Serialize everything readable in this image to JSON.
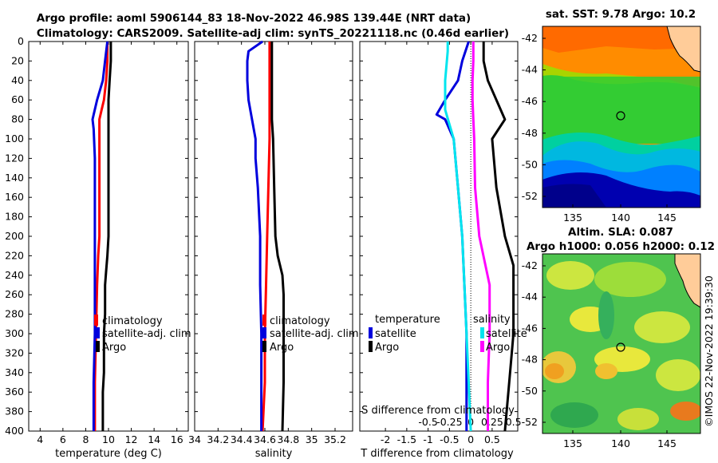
{
  "header": {
    "line1": "Argo profile: aoml 5906144_83 18-Nov-2022 46.98S 139.44E (NRT data)",
    "line2": "Climatology: CARS2009. Satellite-adj clim: synTS_20221118.nc (0.46d earlier)"
  },
  "chart_data": [
    {
      "type": "line",
      "id": "temperature",
      "xlabel": "temperature (deg C)",
      "xlim": [
        3,
        17
      ],
      "xticks": [
        "4",
        "6",
        "8",
        "10",
        "12",
        "14",
        "16"
      ],
      "ylim": [
        400,
        0
      ],
      "yticks": [
        "0",
        "20",
        "40",
        "60",
        "80",
        "100",
        "120",
        "140",
        "160",
        "180",
        "200",
        "220",
        "240",
        "260",
        "280",
        "300",
        "320",
        "340",
        "360",
        "380",
        "400"
      ],
      "legend": [
        "climatology",
        "satellite-adj. clim",
        "Argo"
      ],
      "series": [
        {
          "name": "climatology",
          "color": "#ff0000",
          "depth": [
            0,
            20,
            40,
            60,
            70,
            80,
            100,
            150,
            200,
            220,
            250,
            300,
            350,
            400
          ],
          "values": [
            9.9,
            9.9,
            9.8,
            9.6,
            9.4,
            9.2,
            9.2,
            9.2,
            9.2,
            9.1,
            9.0,
            8.9,
            8.8,
            8.8
          ]
        },
        {
          "name": "satellite-adj. clim",
          "color": "#0000dd",
          "depth": [
            0,
            20,
            40,
            60,
            75,
            80,
            90,
            120,
            200,
            250,
            300,
            350,
            400
          ],
          "values": [
            9.9,
            9.7,
            9.5,
            9.0,
            8.7,
            8.6,
            8.7,
            8.8,
            8.8,
            8.8,
            8.8,
            8.7,
            8.7
          ]
        },
        {
          "name": "Argo",
          "color": "#000000",
          "depth": [
            0,
            20,
            40,
            60,
            80,
            100,
            150,
            200,
            220,
            235,
            250,
            280,
            300,
            340,
            360,
            380,
            400
          ],
          "values": [
            10.2,
            10.2,
            10.1,
            10.0,
            10.0,
            10.0,
            10.0,
            10.0,
            9.9,
            9.8,
            9.7,
            9.7,
            9.6,
            9.6,
            9.5,
            9.5,
            9.5
          ]
        }
      ]
    },
    {
      "type": "line",
      "id": "salinity",
      "xlabel": "salinity",
      "xlim": [
        34.0,
        35.35
      ],
      "xticks": [
        "34",
        "34.2",
        "34.4",
        "34.6",
        "34.8",
        "35",
        "35.2"
      ],
      "ylim": [
        400,
        0
      ],
      "legend": [
        "climatology",
        "satellite-adj. clim",
        "Argo"
      ],
      "series": [
        {
          "name": "climatology",
          "color": "#ff0000",
          "depth": [
            0,
            50,
            100,
            150,
            200,
            250,
            300,
            350,
            400
          ],
          "values": [
            34.64,
            34.64,
            34.64,
            34.63,
            34.62,
            34.61,
            34.6,
            34.6,
            34.58
          ]
        },
        {
          "name": "satellite-adj. clim",
          "color": "#0000dd",
          "depth": [
            0,
            10,
            20,
            40,
            60,
            80,
            100,
            120,
            150,
            200,
            250,
            300,
            350,
            400
          ],
          "values": [
            34.58,
            34.46,
            34.45,
            34.45,
            34.46,
            34.49,
            34.52,
            34.52,
            34.54,
            34.56,
            34.56,
            34.57,
            34.57,
            34.57
          ]
        },
        {
          "name": "Argo",
          "color": "#000000",
          "depth": [
            0,
            20,
            40,
            60,
            80,
            100,
            150,
            200,
            220,
            240,
            260,
            300,
            350,
            400
          ],
          "values": [
            34.66,
            34.66,
            34.66,
            34.66,
            34.66,
            34.67,
            34.68,
            34.69,
            34.71,
            34.75,
            34.76,
            34.76,
            34.76,
            34.75
          ]
        }
      ]
    },
    {
      "type": "line",
      "id": "difference",
      "xlabel": "T difference from climatology",
      "xlim": [
        -2.6,
        1.1
      ],
      "xticks": [
        "-2",
        "-1.5",
        "-1",
        "-0.5",
        "0",
        "0.5"
      ],
      "second_xlabel": "S difference from climatology",
      "second_xticks": [
        "-0.5",
        "-0.25",
        "0",
        "0.25",
        "0.5"
      ],
      "ylim": [
        400,
        0
      ],
      "legend_left_title": "temperature",
      "legend_left": [
        "satellite",
        "Argo"
      ],
      "legend_right_title": "salinity",
      "legend_right": [
        "satellite",
        "Argo"
      ],
      "series": [
        {
          "name": "temperature satellite",
          "color": "#0000dd",
          "depth": [
            0,
            20,
            40,
            60,
            75,
            80,
            100,
            150,
            200,
            300,
            400
          ],
          "values": [
            -0.05,
            -0.2,
            -0.3,
            -0.6,
            -0.8,
            -0.6,
            -0.4,
            -0.3,
            -0.2,
            -0.1,
            -0.1
          ]
        },
        {
          "name": "temperature Argo",
          "color": "#000000",
          "depth": [
            0,
            20,
            40,
            60,
            80,
            100,
            150,
            200,
            230,
            250,
            300,
            350,
            400
          ],
          "values": [
            0.3,
            0.3,
            0.4,
            0.6,
            0.8,
            0.5,
            0.6,
            0.8,
            1.0,
            1.0,
            1.0,
            0.9,
            0.8
          ]
        },
        {
          "name": "salinity satellite",
          "color": "#00e5ee",
          "depth": [
            0,
            10,
            40,
            70,
            100,
            150,
            200,
            300,
            400
          ],
          "values": [
            -0.27,
            -0.27,
            -0.3,
            -0.3,
            -0.2,
            -0.15,
            -0.1,
            -0.05,
            0.0
          ]
        },
        {
          "name": "salinity Argo",
          "color": "#ff00ff",
          "depth": [
            0,
            20,
            40,
            60,
            80,
            100,
            150,
            200,
            250,
            300,
            350,
            400
          ],
          "values": [
            0.03,
            0.03,
            0.02,
            0.02,
            0.03,
            0.04,
            0.05,
            0.1,
            0.22,
            0.22,
            0.2,
            0.2
          ]
        }
      ]
    }
  ],
  "maps": [
    {
      "title": "sat. SST: 9.78 Argo: 10.2",
      "yticks": [
        "-42",
        "-44",
        "-46",
        "-48",
        "-50",
        "-52"
      ],
      "xticks": [
        "135",
        "140",
        "145"
      ]
    },
    {
      "title_line1": "Altim. SLA: 0.087",
      "title_line2": "Argo h1000: 0.056 h2000: 0.12",
      "yticks": [
        "-42",
        "-44",
        "-46",
        "-48",
        "-50",
        "-52"
      ],
      "xticks": [
        "135",
        "140",
        "145"
      ]
    }
  ],
  "watermark": "©IMOS 22-Nov-2022 19:39:30",
  "colors": {
    "land": "#ffcc99",
    "sst_warm": "#ff8c00",
    "sst_mid": "#33cc33",
    "sst_cold": "#00008b",
    "sla_yellow": "#e8e83c",
    "sla_green": "#55cc55"
  }
}
